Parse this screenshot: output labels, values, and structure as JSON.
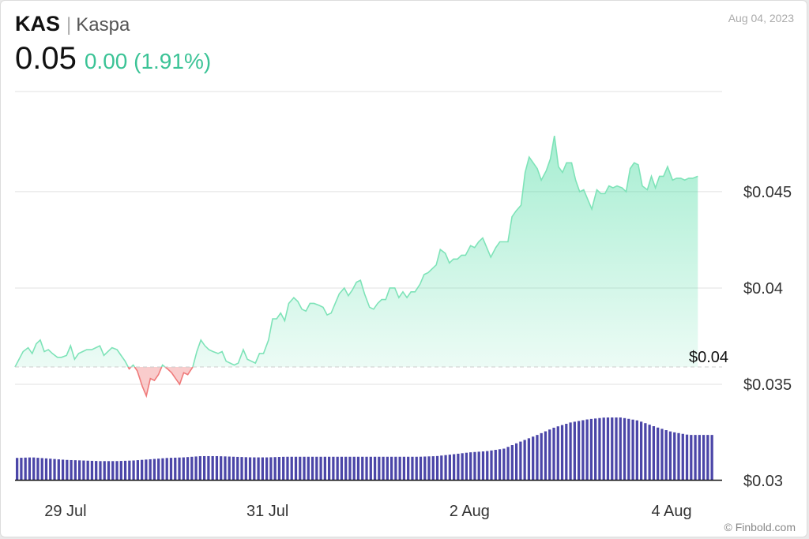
{
  "header": {
    "symbol": "KAS",
    "separator": "|",
    "name": "Kaspa",
    "price": "0.05",
    "change": "0.00 (1.91%)",
    "date": "Aug 04, 2023"
  },
  "watermark": "© Finbold.com",
  "colors": {
    "up_line": "#7ee3b8",
    "up_fill": "#3bd99a",
    "down_line": "#ef7a7a",
    "down_fill": "#f4a3a3",
    "volume": "#4b46a8",
    "grid": "#e2e2e2",
    "change_text": "#3bc396"
  },
  "chart_data": {
    "type": "area",
    "y_tick_labels": [
      "$0.045",
      "$0.04",
      "$0.035",
      "$0.03"
    ],
    "y_ticks": [
      0.045,
      0.04,
      0.035,
      0.03
    ],
    "ylim": [
      0.03,
      0.0502
    ],
    "x_tick_labels": [
      "29 Jul",
      "31 Jul",
      "2 Aug",
      "4 Aug"
    ],
    "x_ticks": [
      27.5,
      29.5,
      31.5,
      33.5
    ],
    "xlim": [
      27.0,
      34.0
    ],
    "reference": {
      "value": 0.0359,
      "label": "$0.04"
    },
    "grid": true,
    "price_series": [
      [
        27.0,
        0.0359
      ],
      [
        27.04,
        0.0363
      ],
      [
        27.08,
        0.0367
      ],
      [
        27.13,
        0.0369
      ],
      [
        27.17,
        0.0366
      ],
      [
        27.21,
        0.0371
      ],
      [
        27.25,
        0.0373
      ],
      [
        27.29,
        0.0367
      ],
      [
        27.33,
        0.0368
      ],
      [
        27.37,
        0.0366
      ],
      [
        27.42,
        0.0364
      ],
      [
        27.46,
        0.0364
      ],
      [
        27.51,
        0.0365
      ],
      [
        27.55,
        0.037
      ],
      [
        27.59,
        0.0363
      ],
      [
        27.63,
        0.0366
      ],
      [
        27.67,
        0.0367
      ],
      [
        27.71,
        0.0368
      ],
      [
        27.76,
        0.0368
      ],
      [
        27.8,
        0.0369
      ],
      [
        27.84,
        0.037
      ],
      [
        27.88,
        0.0365
      ],
      [
        27.92,
        0.0367
      ],
      [
        27.96,
        0.0369
      ],
      [
        28.01,
        0.0368
      ],
      [
        28.05,
        0.0365
      ],
      [
        28.09,
        0.0362
      ],
      [
        28.13,
        0.0358
      ],
      [
        28.17,
        0.036
      ],
      [
        28.21,
        0.0357
      ],
      [
        28.26,
        0.0349
      ],
      [
        28.3,
        0.0344
      ],
      [
        28.34,
        0.0353
      ],
      [
        28.38,
        0.0352
      ],
      [
        28.42,
        0.0355
      ],
      [
        28.46,
        0.036
      ],
      [
        28.51,
        0.0358
      ],
      [
        28.55,
        0.0356
      ],
      [
        28.59,
        0.0353
      ],
      [
        28.63,
        0.035
      ],
      [
        28.67,
        0.0356
      ],
      [
        28.71,
        0.0355
      ],
      [
        28.76,
        0.0359
      ],
      [
        28.8,
        0.0367
      ],
      [
        28.84,
        0.0373
      ],
      [
        28.88,
        0.037
      ],
      [
        28.92,
        0.0368
      ],
      [
        28.96,
        0.0367
      ],
      [
        29.01,
        0.0366
      ],
      [
        29.05,
        0.0367
      ],
      [
        29.09,
        0.0362
      ],
      [
        29.13,
        0.0361
      ],
      [
        29.17,
        0.036
      ],
      [
        29.21,
        0.0361
      ],
      [
        29.26,
        0.0368
      ],
      [
        29.3,
        0.0363
      ],
      [
        29.34,
        0.0362
      ],
      [
        29.38,
        0.0361
      ],
      [
        29.42,
        0.0366
      ],
      [
        29.46,
        0.0366
      ],
      [
        29.51,
        0.0373
      ],
      [
        29.55,
        0.0384
      ],
      [
        29.59,
        0.0384
      ],
      [
        29.63,
        0.0387
      ],
      [
        29.67,
        0.0383
      ],
      [
        29.71,
        0.0392
      ],
      [
        29.76,
        0.0395
      ],
      [
        29.8,
        0.0393
      ],
      [
        29.84,
        0.0389
      ],
      [
        29.88,
        0.0388
      ],
      [
        29.92,
        0.0392
      ],
      [
        29.96,
        0.0392
      ],
      [
        30.01,
        0.0391
      ],
      [
        30.05,
        0.039
      ],
      [
        30.09,
        0.0386
      ],
      [
        30.13,
        0.0387
      ],
      [
        30.17,
        0.0392
      ],
      [
        30.21,
        0.0397
      ],
      [
        30.26,
        0.04
      ],
      [
        30.3,
        0.0396
      ],
      [
        30.34,
        0.0399
      ],
      [
        30.38,
        0.0403
      ],
      [
        30.42,
        0.0404
      ],
      [
        30.46,
        0.0397
      ],
      [
        30.51,
        0.039
      ],
      [
        30.55,
        0.0389
      ],
      [
        30.59,
        0.0392
      ],
      [
        30.63,
        0.0394
      ],
      [
        30.67,
        0.0394
      ],
      [
        30.71,
        0.04
      ],
      [
        30.76,
        0.04
      ],
      [
        30.8,
        0.0395
      ],
      [
        30.84,
        0.0398
      ],
      [
        30.88,
        0.0395
      ],
      [
        30.92,
        0.0398
      ],
      [
        30.96,
        0.0398
      ],
      [
        31.01,
        0.0402
      ],
      [
        31.05,
        0.0407
      ],
      [
        31.09,
        0.0408
      ],
      [
        31.13,
        0.041
      ],
      [
        31.17,
        0.0412
      ],
      [
        31.21,
        0.042
      ],
      [
        31.26,
        0.0418
      ],
      [
        31.3,
        0.0413
      ],
      [
        31.34,
        0.0415
      ],
      [
        31.38,
        0.0415
      ],
      [
        31.42,
        0.0417
      ],
      [
        31.46,
        0.0417
      ],
      [
        31.51,
        0.0422
      ],
      [
        31.55,
        0.0421
      ],
      [
        31.59,
        0.0424
      ],
      [
        31.63,
        0.0426
      ],
      [
        31.67,
        0.0421
      ],
      [
        31.71,
        0.0416
      ],
      [
        31.76,
        0.0421
      ],
      [
        31.8,
        0.0424
      ],
      [
        31.84,
        0.0424
      ],
      [
        31.88,
        0.0424
      ],
      [
        31.92,
        0.0437
      ],
      [
        31.96,
        0.044
      ],
      [
        32.01,
        0.0443
      ],
      [
        32.05,
        0.046
      ],
      [
        32.09,
        0.0468
      ],
      [
        32.13,
        0.0465
      ],
      [
        32.17,
        0.0462
      ],
      [
        32.21,
        0.0456
      ],
      [
        32.26,
        0.0461
      ],
      [
        32.3,
        0.0467
      ],
      [
        32.34,
        0.0479
      ],
      [
        32.38,
        0.0463
      ],
      [
        32.42,
        0.046
      ],
      [
        32.46,
        0.0465
      ],
      [
        32.51,
        0.0465
      ],
      [
        32.55,
        0.0456
      ],
      [
        32.59,
        0.045
      ],
      [
        32.63,
        0.0451
      ],
      [
        32.67,
        0.0446
      ],
      [
        32.71,
        0.0441
      ],
      [
        32.76,
        0.0451
      ],
      [
        32.8,
        0.0449
      ],
      [
        32.84,
        0.0449
      ],
      [
        32.88,
        0.0453
      ],
      [
        32.92,
        0.0452
      ],
      [
        32.96,
        0.0453
      ],
      [
        33.01,
        0.0452
      ],
      [
        33.05,
        0.045
      ],
      [
        33.09,
        0.0462
      ],
      [
        33.13,
        0.0465
      ],
      [
        33.17,
        0.0464
      ],
      [
        33.21,
        0.0453
      ],
      [
        33.26,
        0.0451
      ],
      [
        33.3,
        0.0458
      ],
      [
        33.34,
        0.0452
      ],
      [
        33.38,
        0.0458
      ],
      [
        33.42,
        0.0458
      ],
      [
        33.46,
        0.0463
      ],
      [
        33.51,
        0.0456
      ],
      [
        33.55,
        0.0457
      ],
      [
        33.59,
        0.0457
      ],
      [
        33.63,
        0.0456
      ],
      [
        33.67,
        0.0457
      ],
      [
        33.71,
        0.0457
      ],
      [
        33.76,
        0.0458
      ]
    ],
    "volume_unit": "relative to peak",
    "volume_series": [
      [
        27.0,
        0.35
      ],
      [
        27.17,
        0.36
      ],
      [
        27.34,
        0.34
      ],
      [
        27.5,
        0.32
      ],
      [
        27.67,
        0.31
      ],
      [
        27.84,
        0.3
      ],
      [
        28.0,
        0.3
      ],
      [
        28.17,
        0.31
      ],
      [
        28.34,
        0.33
      ],
      [
        28.5,
        0.35
      ],
      [
        28.67,
        0.36
      ],
      [
        28.84,
        0.38
      ],
      [
        29.0,
        0.38
      ],
      [
        29.17,
        0.37
      ],
      [
        29.34,
        0.36
      ],
      [
        29.5,
        0.36
      ],
      [
        29.67,
        0.37
      ],
      [
        29.84,
        0.37
      ],
      [
        30.0,
        0.37
      ],
      [
        30.17,
        0.37
      ],
      [
        30.34,
        0.37
      ],
      [
        30.5,
        0.37
      ],
      [
        30.67,
        0.37
      ],
      [
        30.84,
        0.37
      ],
      [
        31.0,
        0.37
      ],
      [
        31.17,
        0.38
      ],
      [
        31.34,
        0.41
      ],
      [
        31.5,
        0.44
      ],
      [
        31.67,
        0.46
      ],
      [
        31.84,
        0.5
      ],
      [
        32.0,
        0.61
      ],
      [
        32.17,
        0.72
      ],
      [
        32.34,
        0.84
      ],
      [
        32.5,
        0.92
      ],
      [
        32.67,
        0.97
      ],
      [
        32.84,
        1.0
      ],
      [
        33.0,
        1.0
      ],
      [
        33.17,
        0.95
      ],
      [
        33.34,
        0.85
      ],
      [
        33.5,
        0.77
      ],
      [
        33.67,
        0.72
      ],
      [
        33.76,
        0.72
      ]
    ]
  }
}
